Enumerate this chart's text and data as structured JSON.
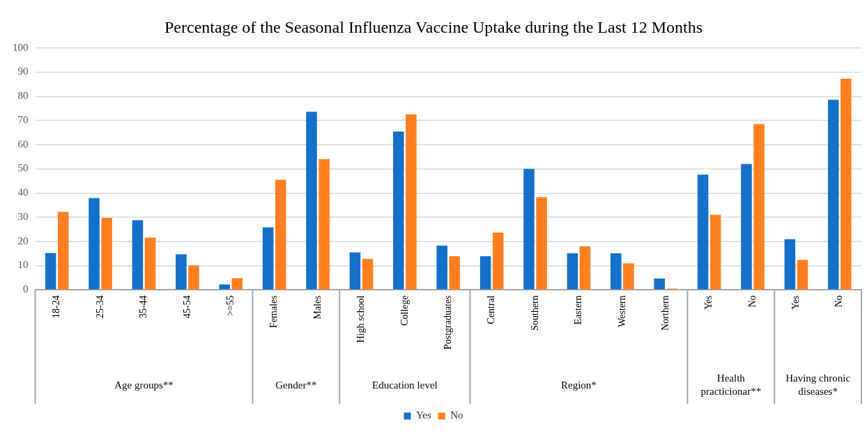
{
  "chart_data": {
    "type": "bar",
    "title": "Percentage of the Seasonal Influenza Vaccine Uptake during the Last 12 Months",
    "categories": [
      "18-24",
      "25-34",
      "35-44",
      "45-54",
      ">=55",
      "Females",
      "Males",
      "High school",
      "College",
      "Postgraduates",
      "Central",
      "Southern",
      "Eastern",
      "Western",
      "Northern",
      "Yes",
      "No",
      "Yes",
      "No"
    ],
    "series": [
      {
        "name": "Yes",
        "color": "#1470c8",
        "values": [
          15.2,
          37.9,
          28.8,
          14.7,
          2.2,
          25.8,
          73.6,
          15.5,
          65.4,
          18.3,
          13.9,
          50.0,
          15.1,
          15.1,
          4.7,
          47.6,
          52.0,
          20.9,
          78.6
        ]
      },
      {
        "name": "No",
        "color": "#ff7f20",
        "values": [
          32.2,
          29.7,
          21.6,
          10.1,
          4.8,
          45.5,
          54.0,
          12.8,
          72.5,
          13.9,
          23.7,
          38.3,
          18.0,
          10.9,
          0.5,
          31.0,
          68.5,
          12.4,
          87.3
        ]
      }
    ],
    "ylim": [
      0,
      100
    ],
    "yticks": [
      0,
      10,
      20,
      30,
      40,
      50,
      60,
      70,
      80,
      90,
      100
    ],
    "grid": "y",
    "legend": "bottom",
    "annotations": [
      "Age groups**",
      "Gender**",
      "Education level",
      "Region*",
      "Health practicionar**",
      "Having chronic diseases*"
    ]
  }
}
